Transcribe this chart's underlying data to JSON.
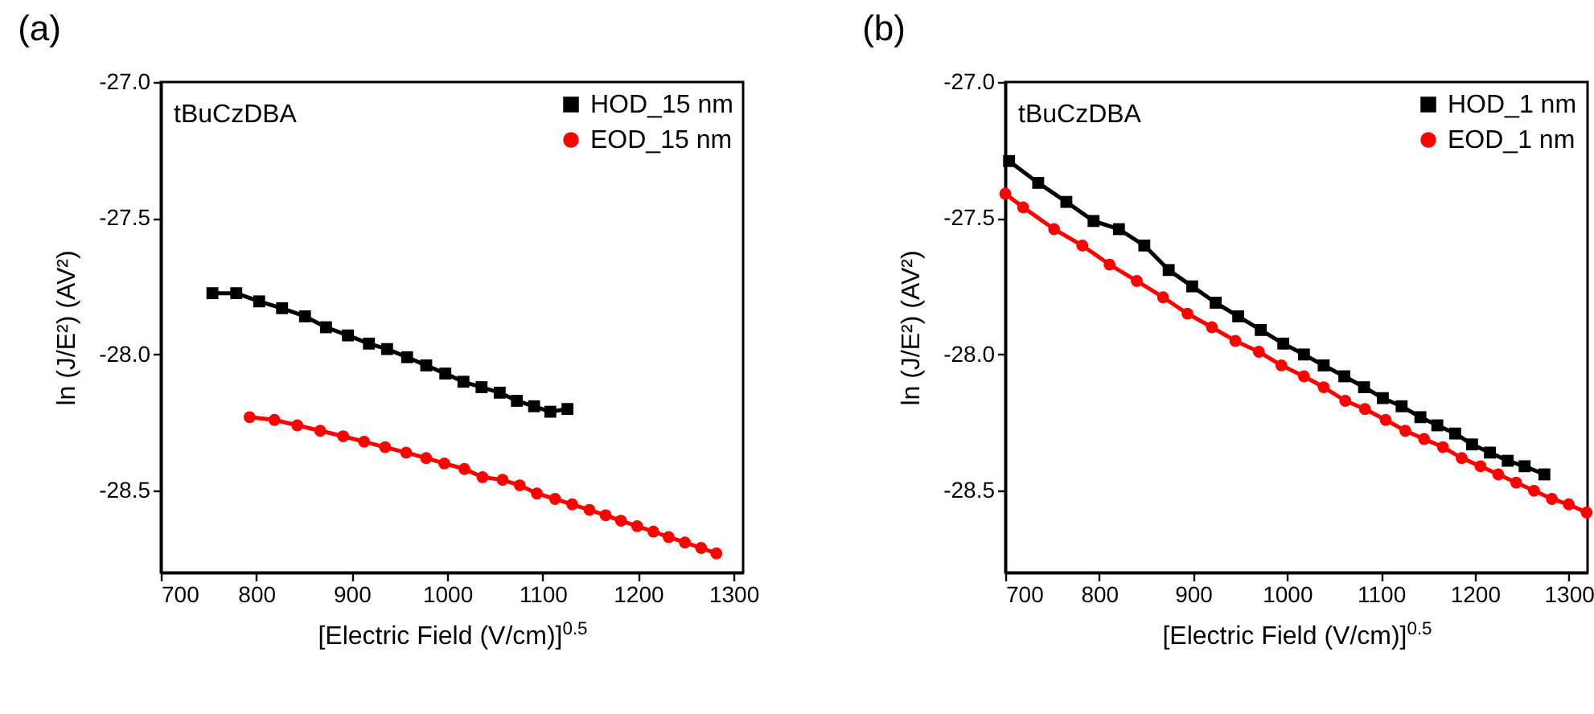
{
  "chart_data": [
    {
      "type": "line",
      "title": "(a)",
      "xlabel": "[Electric Field (V/cm)]$^{0.5}$",
      "ylabel": "ln (J/E²) (AV²)",
      "annotations": [
        "tBuCzDBA"
      ],
      "xlim": [
        700,
        1310
      ],
      "xticks": [
        700,
        800,
        900,
        1000,
        1100,
        1200,
        1300
      ],
      "ylim": [
        -28.8,
        -27.0
      ],
      "yticks": [
        {
          "value": -28.5,
          "label": "-28.5"
        },
        {
          "value": -28.0,
          "label": "-28.0"
        },
        {
          "value": -27.5,
          "label": "-27.5"
        },
        {
          "value": -27.0,
          "label": "-27.0"
        }
      ],
      "grid": false,
      "legend": "top right",
      "series": [
        {
          "name": "HOD_15 nm",
          "color": "#000000",
          "marker": "square",
          "x": [
            754,
            779,
            803,
            827,
            851,
            873,
            896,
            918,
            937,
            958,
            978,
            998,
            1017,
            1036,
            1055,
            1073,
            1091,
            1108,
            1126
          ],
          "values": [
            -27.775,
            -27.775,
            -27.805,
            -27.83,
            -27.86,
            -27.9,
            -27.93,
            -27.96,
            -27.98,
            -28.01,
            -28.04,
            -28.07,
            -28.1,
            -28.12,
            -28.14,
            -28.17,
            -28.19,
            -28.21,
            -28.2
          ]
        },
        {
          "name": "EOD_15 nm",
          "color": "#ff0000",
          "marker": "circle",
          "x": [
            793,
            819,
            843,
            867,
            891,
            913,
            935,
            957,
            978,
            997,
            1018,
            1037,
            1058,
            1076,
            1094,
            1113,
            1131,
            1149,
            1166,
            1182,
            1199,
            1216,
            1232,
            1249,
            1266,
            1282
          ],
          "values": [
            -28.23,
            -28.24,
            -28.26,
            -28.28,
            -28.3,
            -28.32,
            -28.34,
            -28.36,
            -28.38,
            -28.4,
            -28.42,
            -28.45,
            -28.46,
            -28.48,
            -28.51,
            -28.53,
            -28.55,
            -28.57,
            -28.59,
            -28.61,
            -28.63,
            -28.65,
            -28.67,
            -28.69,
            -28.71,
            -28.73
          ]
        }
      ]
    },
    {
      "type": "line",
      "title": "(b)",
      "xlabel": "[Electric Field (V/cm)]$^{0.5}$",
      "ylabel": "ln (J/E²) (AV²)",
      "annotations": [
        "tBuCzDBA"
      ],
      "xlim": [
        700,
        1320
      ],
      "xticks": [
        700,
        800,
        900,
        1000,
        1100,
        1200,
        1300
      ],
      "ylim": [
        -28.8,
        -27.0
      ],
      "yticks": [
        {
          "value": -28.5,
          "label": "-28.5"
        },
        {
          "value": -28.0,
          "label": "-28.0"
        },
        {
          "value": -27.5,
          "label": "-27.5"
        },
        {
          "value": -27.0,
          "label": "-27.0"
        }
      ],
      "grid": false,
      "legend": "top right",
      "series": [
        {
          "name": "HOD_1 nm",
          "color": "#000000",
          "marker": "square",
          "x": [
            704,
            735,
            765,
            794,
            821,
            848,
            874,
            899,
            924,
            948,
            972,
            996,
            1018,
            1039,
            1061,
            1082,
            1102,
            1122,
            1142,
            1160,
            1179,
            1197,
            1216,
            1235,
            1253,
            1274
          ],
          "values": [
            -27.29,
            -27.37,
            -27.44,
            -27.51,
            -27.54,
            -27.6,
            -27.69,
            -27.75,
            -27.81,
            -27.86,
            -27.91,
            -27.96,
            -28.0,
            -28.04,
            -28.08,
            -28.12,
            -28.16,
            -28.19,
            -28.23,
            -28.26,
            -28.29,
            -28.33,
            -28.36,
            -28.39,
            -28.41,
            -28.44
          ]
        },
        {
          "name": "EOD_1 nm",
          "color": "#ff0000",
          "marker": "circle",
          "x": [
            700,
            719,
            752,
            782,
            811,
            840,
            868,
            894,
            920,
            945,
            970,
            994,
            1018,
            1039,
            1062,
            1083,
            1105,
            1126,
            1146,
            1166,
            1186,
            1206,
            1225,
            1244,
            1263,
            1282,
            1300,
            1319
          ],
          "values": [
            -27.41,
            -27.46,
            -27.54,
            -27.6,
            -27.67,
            -27.73,
            -27.79,
            -27.85,
            -27.9,
            -27.95,
            -27.99,
            -28.04,
            -28.08,
            -28.12,
            -28.17,
            -28.2,
            -28.24,
            -28.28,
            -28.31,
            -28.34,
            -28.38,
            -28.41,
            -28.44,
            -28.47,
            -28.5,
            -28.53,
            -28.55,
            -28.58
          ]
        }
      ]
    }
  ]
}
